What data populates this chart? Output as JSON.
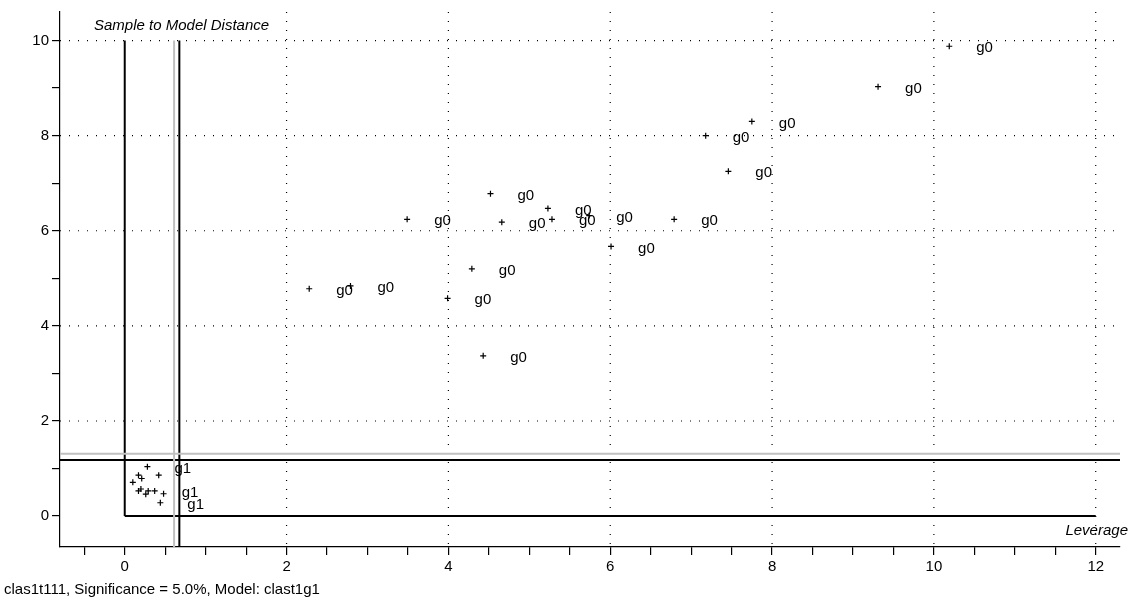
{
  "chart_data": {
    "type": "scatter",
    "ylabel": "Sample to Model Distance",
    "xlabel": "Leverage",
    "annotations": [
      "clas1t111, Significance = 5.0%, Model: clast1g1"
    ],
    "xlim": [
      -0.8,
      12.3
    ],
    "ylim": [
      -0.65,
      10.6
    ],
    "xticks": [
      {
        "value": -0.5,
        "label": null
      },
      0,
      {
        "value": 0.5,
        "label": null
      },
      {
        "value": 1,
        "label": null
      },
      {
        "value": 1.5,
        "label": null
      },
      2,
      {
        "value": 2.5,
        "label": null
      },
      {
        "value": 3,
        "label": null
      },
      {
        "value": 3.5,
        "label": null
      },
      4,
      {
        "value": 4.5,
        "label": null
      },
      {
        "value": 5,
        "label": null
      },
      {
        "value": 5.5,
        "label": null
      },
      6,
      {
        "value": 6.5,
        "label": null
      },
      {
        "value": 7,
        "label": null
      },
      {
        "value": 7.5,
        "label": null
      },
      8,
      {
        "value": 8.5,
        "label": null
      },
      {
        "value": 9,
        "label": null
      },
      {
        "value": 9.5,
        "label": null
      },
      10,
      {
        "value": 10.5,
        "label": null
      },
      {
        "value": 11,
        "label": null
      },
      {
        "value": 11.5,
        "label": null
      },
      12
    ],
    "yticks": [
      0,
      {
        "value": 1,
        "label": null
      },
      2,
      {
        "value": 3,
        "label": null
      },
      4,
      {
        "value": 5,
        "label": null
      },
      6,
      {
        "value": 7,
        "label": null
      },
      8,
      {
        "value": 9,
        "label": null
      },
      10
    ],
    "grid": true,
    "legend": false,
    "marker": "cross",
    "tick_labels": "xy",
    "ref_lines": [
      {
        "axis": "x",
        "value": 0.675,
        "color": "#000000"
      },
      {
        "axis": "y",
        "value": 1.18,
        "color": "#000000"
      },
      {
        "axis": "x",
        "value": 0.61,
        "color": "#c0c0c0"
      },
      {
        "axis": "y",
        "value": 1.31,
        "color": "#c0c0c0"
      }
    ],
    "series": [
      {
        "color": "#000000",
        "x": [
          2.28,
          2.79,
          3.49,
          4.52,
          4.66,
          5.23,
          5.28,
          5.74,
          4.29,
          3.99,
          4.43,
          6.01,
          6.79,
          10.19,
          9.31,
          7.75,
          7.18,
          7.46
        ],
        "values": [
          4.78,
          4.84,
          6.24,
          6.78,
          6.18,
          6.47,
          6.24,
          6.32,
          5.2,
          4.58,
          3.37,
          5.67,
          6.24,
          9.88,
          9.03,
          8.3,
          8.0,
          7.25
        ],
        "value_labels": [
          "g0",
          "g0",
          "g0",
          "g0",
          "g0",
          "g0",
          "g0",
          "g0",
          "g0",
          "g0",
          "g0",
          "g0",
          "g0",
          "g0",
          "g0",
          "g0",
          "g0",
          "g0"
        ]
      },
      {
        "color": "#000000",
        "x": [
          0.28,
          0.17,
          0.21,
          0.1,
          0.42,
          0.2,
          0.17,
          0.29,
          0.26,
          0.37,
          0.44,
          0.48
        ],
        "values": [
          1.04,
          0.86,
          0.79,
          0.71,
          0.86,
          0.57,
          0.53,
          0.53,
          0.46,
          0.53,
          0.28,
          0.47
        ],
        "value_labels": [
          "g1",
          null,
          null,
          null,
          null,
          null,
          null,
          null,
          null,
          "g1",
          "g1",
          null
        ]
      }
    ]
  }
}
